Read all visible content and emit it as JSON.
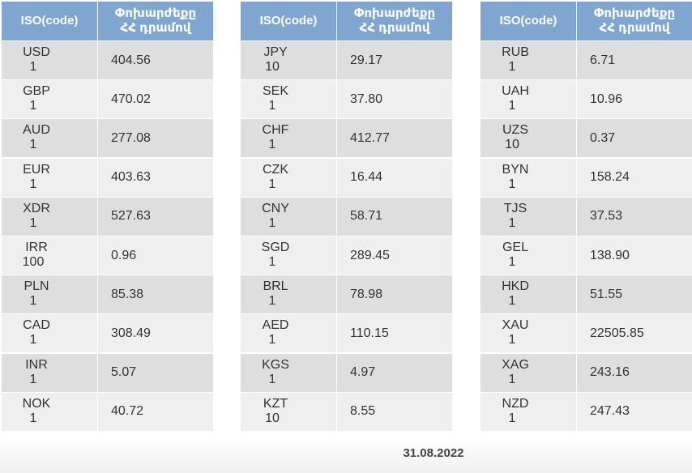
{
  "tables": [
    {
      "header": {
        "code": "ISO(code)",
        "rate": [
          "Փոխարժեքը",
          "ՀՀ դրամով"
        ]
      },
      "rows": [
        {
          "code": "USD",
          "amount": "1",
          "rate": "404.56"
        },
        {
          "code": "GBP",
          "amount": "1",
          "rate": "470.02"
        },
        {
          "code": "AUD",
          "amount": "1",
          "rate": "277.08"
        },
        {
          "code": "EUR",
          "amount": "1",
          "rate": "403.63"
        },
        {
          "code": "XDR",
          "amount": "1",
          "rate": "527.63"
        },
        {
          "code": "IRR",
          "amount": "100",
          "rate": "0.96"
        },
        {
          "code": "PLN",
          "amount": "1",
          "rate": "85.38"
        },
        {
          "code": "CAD",
          "amount": "1",
          "rate": "308.49"
        },
        {
          "code": "INR",
          "amount": "1",
          "rate": "5.07"
        },
        {
          "code": "NOK",
          "amount": "1",
          "rate": "40.72"
        }
      ]
    },
    {
      "header": {
        "code": "ISO(code)",
        "rate": [
          "Փոխարժեքը",
          "ՀՀ դրամով"
        ]
      },
      "rows": [
        {
          "code": "JPY",
          "amount": "10",
          "rate": "29.17"
        },
        {
          "code": "SEK",
          "amount": "1",
          "rate": "37.80"
        },
        {
          "code": "CHF",
          "amount": "1",
          "rate": "412.77"
        },
        {
          "code": "CZK",
          "amount": "1",
          "rate": "16.44"
        },
        {
          "code": "CNY",
          "amount": "1",
          "rate": "58.71"
        },
        {
          "code": "SGD",
          "amount": "1",
          "rate": "289.45"
        },
        {
          "code": "BRL",
          "amount": "1",
          "rate": "78.98"
        },
        {
          "code": "AED",
          "amount": "1",
          "rate": "110.15"
        },
        {
          "code": "KGS",
          "amount": "1",
          "rate": "4.97"
        },
        {
          "code": "KZT",
          "amount": "10",
          "rate": "8.55"
        }
      ]
    },
    {
      "header": {
        "code": "ISO(code)",
        "rate": [
          "Փոխարժեքը",
          "ՀՀ դրամով"
        ]
      },
      "rows": [
        {
          "code": "RUB",
          "amount": "1",
          "rate": "6.71"
        },
        {
          "code": "UAH",
          "amount": "1",
          "rate": "10.96"
        },
        {
          "code": "UZS",
          "amount": "10",
          "rate": "0.37"
        },
        {
          "code": "BYN",
          "amount": "1",
          "rate": "158.24"
        },
        {
          "code": "TJS",
          "amount": "1",
          "rate": "37.53"
        },
        {
          "code": "GEL",
          "amount": "1",
          "rate": "138.90"
        },
        {
          "code": "HKD",
          "amount": "1",
          "rate": "51.55"
        },
        {
          "code": "XAU",
          "amount": "1",
          "rate": "22505.85"
        },
        {
          "code": "XAG",
          "amount": "1",
          "rate": "243.16"
        },
        {
          "code": "NZD",
          "amount": "1",
          "rate": "247.43"
        }
      ]
    }
  ],
  "footer": {
    "date": "31.08.2022"
  }
}
